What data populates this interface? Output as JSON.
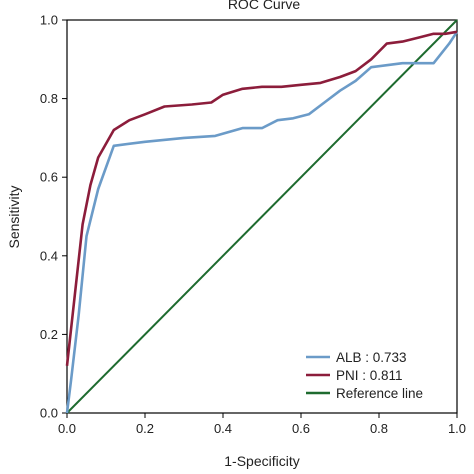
{
  "chart_data": {
    "type": "line",
    "title": "ROC Curve",
    "xlabel": "1-Specificity",
    "ylabel": "Sensitivity",
    "xlim": [
      0,
      1
    ],
    "ylim": [
      0,
      1
    ],
    "xticks": [
      "0.0",
      "0.2",
      "0.4",
      "0.6",
      "0.8",
      "1.0"
    ],
    "yticks": [
      "0.0",
      "0.2",
      "0.4",
      "0.6",
      "0.8",
      "1.0"
    ],
    "grid": false,
    "legend_position": "bottom-right",
    "series": [
      {
        "name": "ALB : 0.733",
        "color": "#6b9bc8",
        "x": [
          0.0,
          0.01,
          0.03,
          0.05,
          0.08,
          0.12,
          0.2,
          0.3,
          0.38,
          0.45,
          0.5,
          0.54,
          0.58,
          0.62,
          0.66,
          0.7,
          0.74,
          0.78,
          0.82,
          0.86,
          0.9,
          0.94,
          0.98,
          1.0
        ],
        "y": [
          0.0,
          0.08,
          0.25,
          0.45,
          0.57,
          0.68,
          0.69,
          0.7,
          0.705,
          0.725,
          0.725,
          0.745,
          0.75,
          0.76,
          0.79,
          0.82,
          0.845,
          0.88,
          0.885,
          0.89,
          0.89,
          0.89,
          0.94,
          0.97
        ]
      },
      {
        "name": "PNI : 0.811",
        "color": "#8c1d3b",
        "x": [
          0.0,
          0.02,
          0.04,
          0.06,
          0.08,
          0.12,
          0.16,
          0.2,
          0.25,
          0.32,
          0.37,
          0.4,
          0.45,
          0.5,
          0.55,
          0.6,
          0.65,
          0.7,
          0.74,
          0.78,
          0.82,
          0.86,
          0.9,
          0.94,
          0.97,
          1.0
        ],
        "y": [
          0.12,
          0.3,
          0.48,
          0.58,
          0.65,
          0.72,
          0.745,
          0.76,
          0.78,
          0.785,
          0.79,
          0.81,
          0.825,
          0.83,
          0.83,
          0.835,
          0.84,
          0.855,
          0.87,
          0.9,
          0.94,
          0.945,
          0.955,
          0.965,
          0.965,
          0.97
        ]
      },
      {
        "name": "Reference line",
        "color": "#1e6b2f",
        "x": [
          0,
          1
        ],
        "y": [
          0,
          1
        ]
      }
    ]
  }
}
